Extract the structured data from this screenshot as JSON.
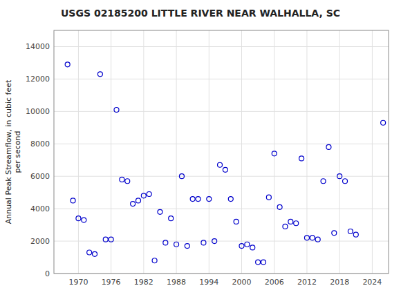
{
  "chart_data": {
    "type": "scatter",
    "title": "USGS 02185200 LITTLE RIVER NEAR WALHALLA, SC",
    "y_label": "Annual Peak Streamflow, in cubic feet\nper second",
    "x": [
      1968,
      1969,
      1970,
      1971,
      1972,
      1973,
      1974,
      1975,
      1976,
      1977,
      1978,
      1979,
      1980,
      1981,
      1982,
      1983,
      1984,
      1985,
      1986,
      1987,
      1988,
      1989,
      1990,
      1991,
      1992,
      1993,
      1994,
      1995,
      1996,
      1997,
      1998,
      1999,
      2000,
      2001,
      2002,
      2003,
      2004,
      2005,
      2006,
      2007,
      2008,
      2009,
      2010,
      2011,
      2012,
      2013,
      2014,
      2015,
      2016,
      2017,
      2018,
      2019,
      2020,
      2021,
      2026
    ],
    "values": [
      12900,
      4500,
      3400,
      3300,
      1300,
      1200,
      12300,
      2100,
      2100,
      10100,
      5800,
      5700,
      4300,
      4500,
      4800,
      4900,
      800,
      3800,
      1900,
      3400,
      1800,
      6000,
      1700,
      4600,
      4600,
      1900,
      4600,
      2000,
      6700,
      6400,
      4600,
      3200,
      1700,
      1800,
      1600,
      700,
      700,
      4700,
      7400,
      4100,
      2900,
      3200,
      3100,
      7100,
      2200,
      2200,
      2100,
      5700,
      7800,
      2500,
      6000,
      5700,
      2600,
      2400,
      9300
    ],
    "color": "#0000CC",
    "marker": "circle",
    "xlim": [
      1965.5,
      2027
    ],
    "ylim": [
      0,
      15000
    ],
    "xticks": [
      1970,
      1976,
      1982,
      1988,
      1994,
      2000,
      2006,
      2012,
      2018,
      2024
    ],
    "yticks": [
      0,
      2000,
      4000,
      6000,
      8000,
      10000,
      12000,
      14000
    ],
    "grid": true
  }
}
